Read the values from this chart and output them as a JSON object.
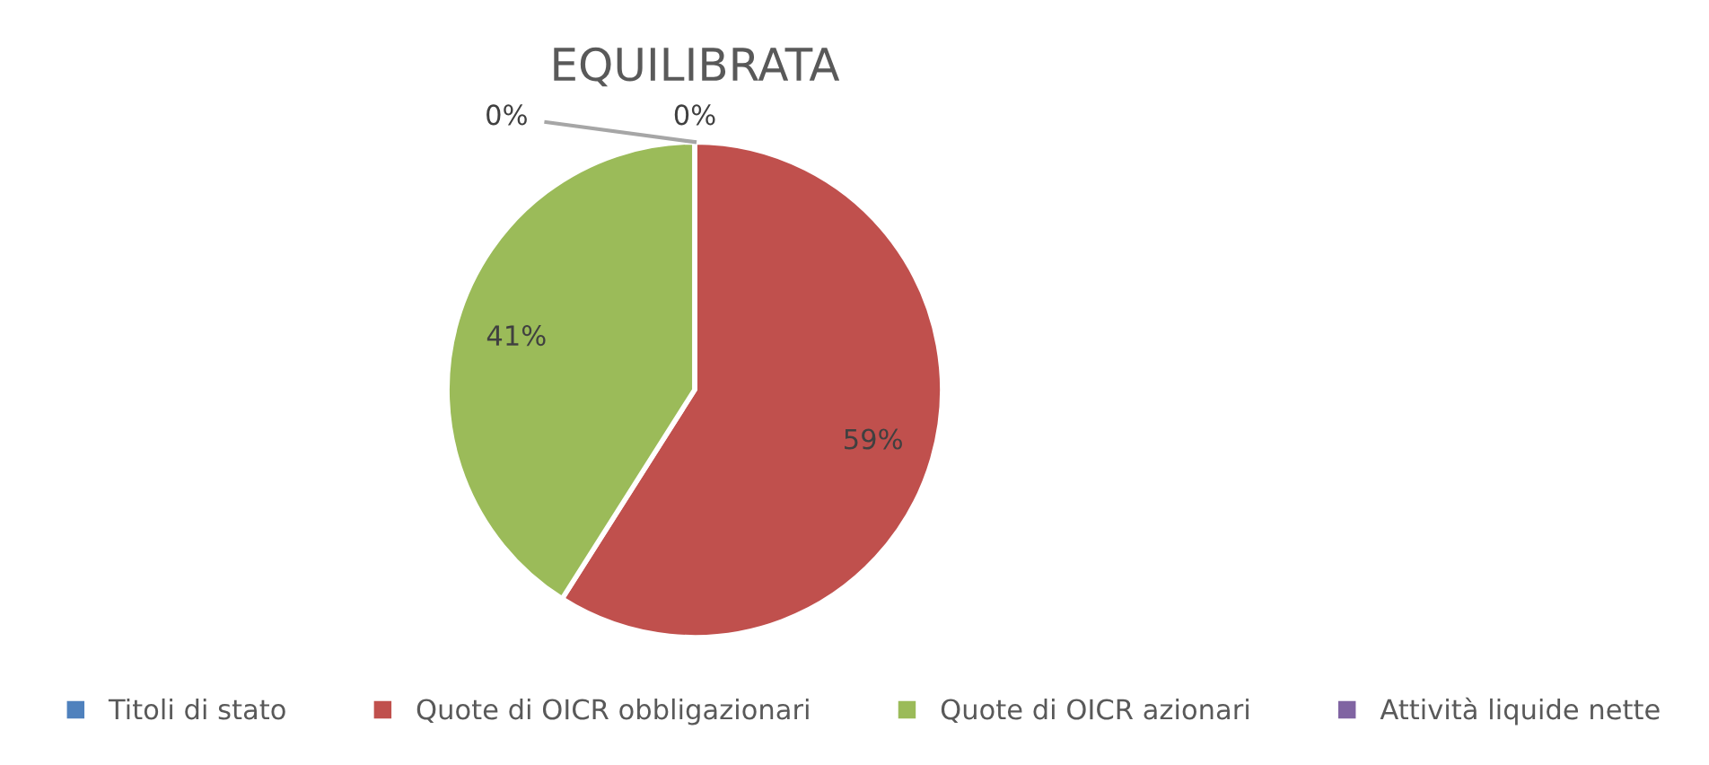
{
  "chart_data": {
    "type": "pie",
    "title": "EQUILIBRATA",
    "categories": [
      "Titoli di stato",
      "Quote di OICR obbligazionari",
      "Quote di OICR azionari",
      "Attività liquide nette"
    ],
    "values": [
      0,
      59,
      41,
      0
    ],
    "colors": [
      "#4f81bd",
      "#c0504d",
      "#9bbb59",
      "#8064a2"
    ],
    "value_labels": [
      "0%",
      "59%",
      "41%",
      "0%"
    ],
    "legend": "bottom"
  }
}
